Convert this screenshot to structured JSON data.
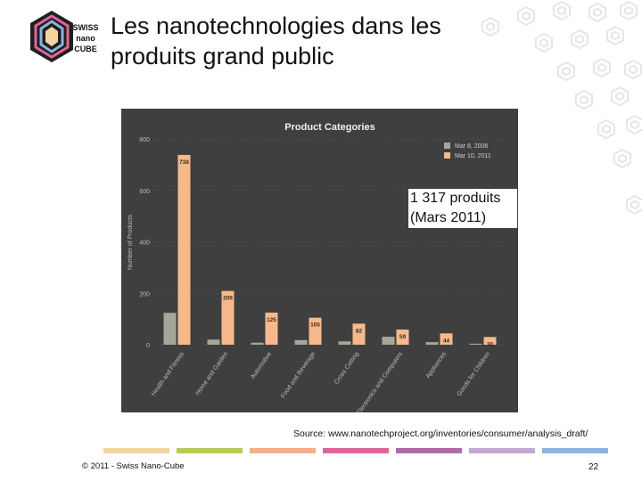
{
  "slide": {
    "title": "Les nanotechnologies dans les produits grand public",
    "logo_text_1": "SWISS",
    "logo_text_2": "nano",
    "logo_text_3": "CUBE",
    "callout_line1": "1 317 produits",
    "callout_line2": "(Mars 2011)",
    "source": "Source: www.nanotechproject.org/inventories/consumer/analysis_draft/",
    "footer_copyright": "© 2011 - Swiss Nano-Cube",
    "page_number": "22"
  },
  "colors": {
    "panel_bg": "#3f3f3f",
    "series_2006": "#a6a59a",
    "series_2011": "#f7b98c",
    "footer_stripes": [
      "#f2d4a0",
      "#b8ca56",
      "#f4b08a",
      "#e0649a",
      "#b06aa8",
      "#c4a8d0",
      "#8cb4e0"
    ]
  },
  "chart_data": {
    "type": "bar",
    "title": "Product Categories",
    "xlabel": "",
    "ylabel": "Number of Products",
    "ylim": [
      0,
      800
    ],
    "yticks": [
      0,
      200,
      400,
      600,
      800
    ],
    "categories": [
      "Health and Fitness",
      "Home and Garden",
      "Automotive",
      "Food and Beverage",
      "Cross Cutting",
      "Electronics and Computers",
      "Appliances",
      "Goods for Children"
    ],
    "series": [
      {
        "name": "Mar 8, 2006",
        "values": [
          124,
          20,
          8,
          18,
          13,
          31,
          10,
          4
        ],
        "labels": []
      },
      {
        "name": "Mar 10, 2011",
        "values": [
          738,
          209,
          125,
          105,
          82,
          59,
          44,
          30
        ],
        "labels": [
          "738",
          "209",
          "125",
          "105",
          "82",
          "59",
          "44",
          "30"
        ]
      }
    ],
    "legend_position": "top-right"
  }
}
